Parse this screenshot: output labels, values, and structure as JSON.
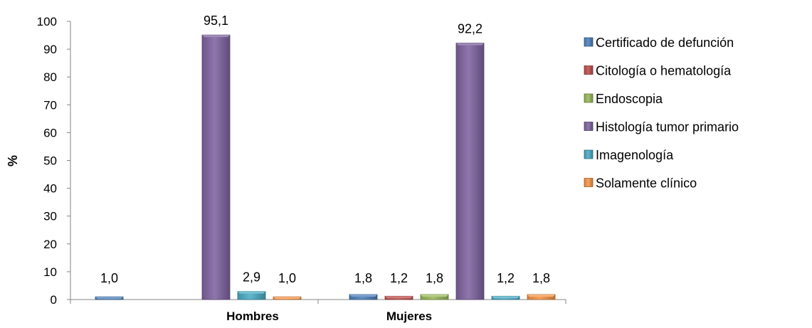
{
  "chart_data": {
    "type": "bar",
    "categories": [
      "Hombres",
      "Mujeres"
    ],
    "ylabel": "%",
    "ylim": [
      0,
      100
    ],
    "yticks": [
      "0",
      "10",
      "20",
      "30",
      "40",
      "50",
      "60",
      "70",
      "80",
      "90",
      "100"
    ],
    "grid": false,
    "legend_position": "right",
    "series": [
      {
        "name": "Certificado de defunción",
        "color": "#4f81bd",
        "values": [
          1.0,
          1.8
        ],
        "labels": [
          "1,0",
          "1,8"
        ]
      },
      {
        "name": "Citología o hematología",
        "color": "#c0504d",
        "values": [
          null,
          1.2
        ],
        "labels": [
          "",
          "1,2"
        ]
      },
      {
        "name": "Endoscopia",
        "color": "#9bbb59",
        "values": [
          null,
          1.8
        ],
        "labels": [
          "",
          "1,8"
        ]
      },
      {
        "name": "Histología tumor primario",
        "color": "#8064a2",
        "values": [
          95.1,
          92.2
        ],
        "labels": [
          "95,1",
          "92,2"
        ]
      },
      {
        "name": "Imagenología",
        "color": "#4bacc6",
        "values": [
          2.9,
          1.2
        ],
        "labels": [
          "2,9",
          "1,2"
        ]
      },
      {
        "name": "Solamente clínico",
        "color": "#f79646",
        "values": [
          1.0,
          1.8
        ],
        "labels": [
          "1,0",
          "1,8"
        ]
      }
    ]
  }
}
